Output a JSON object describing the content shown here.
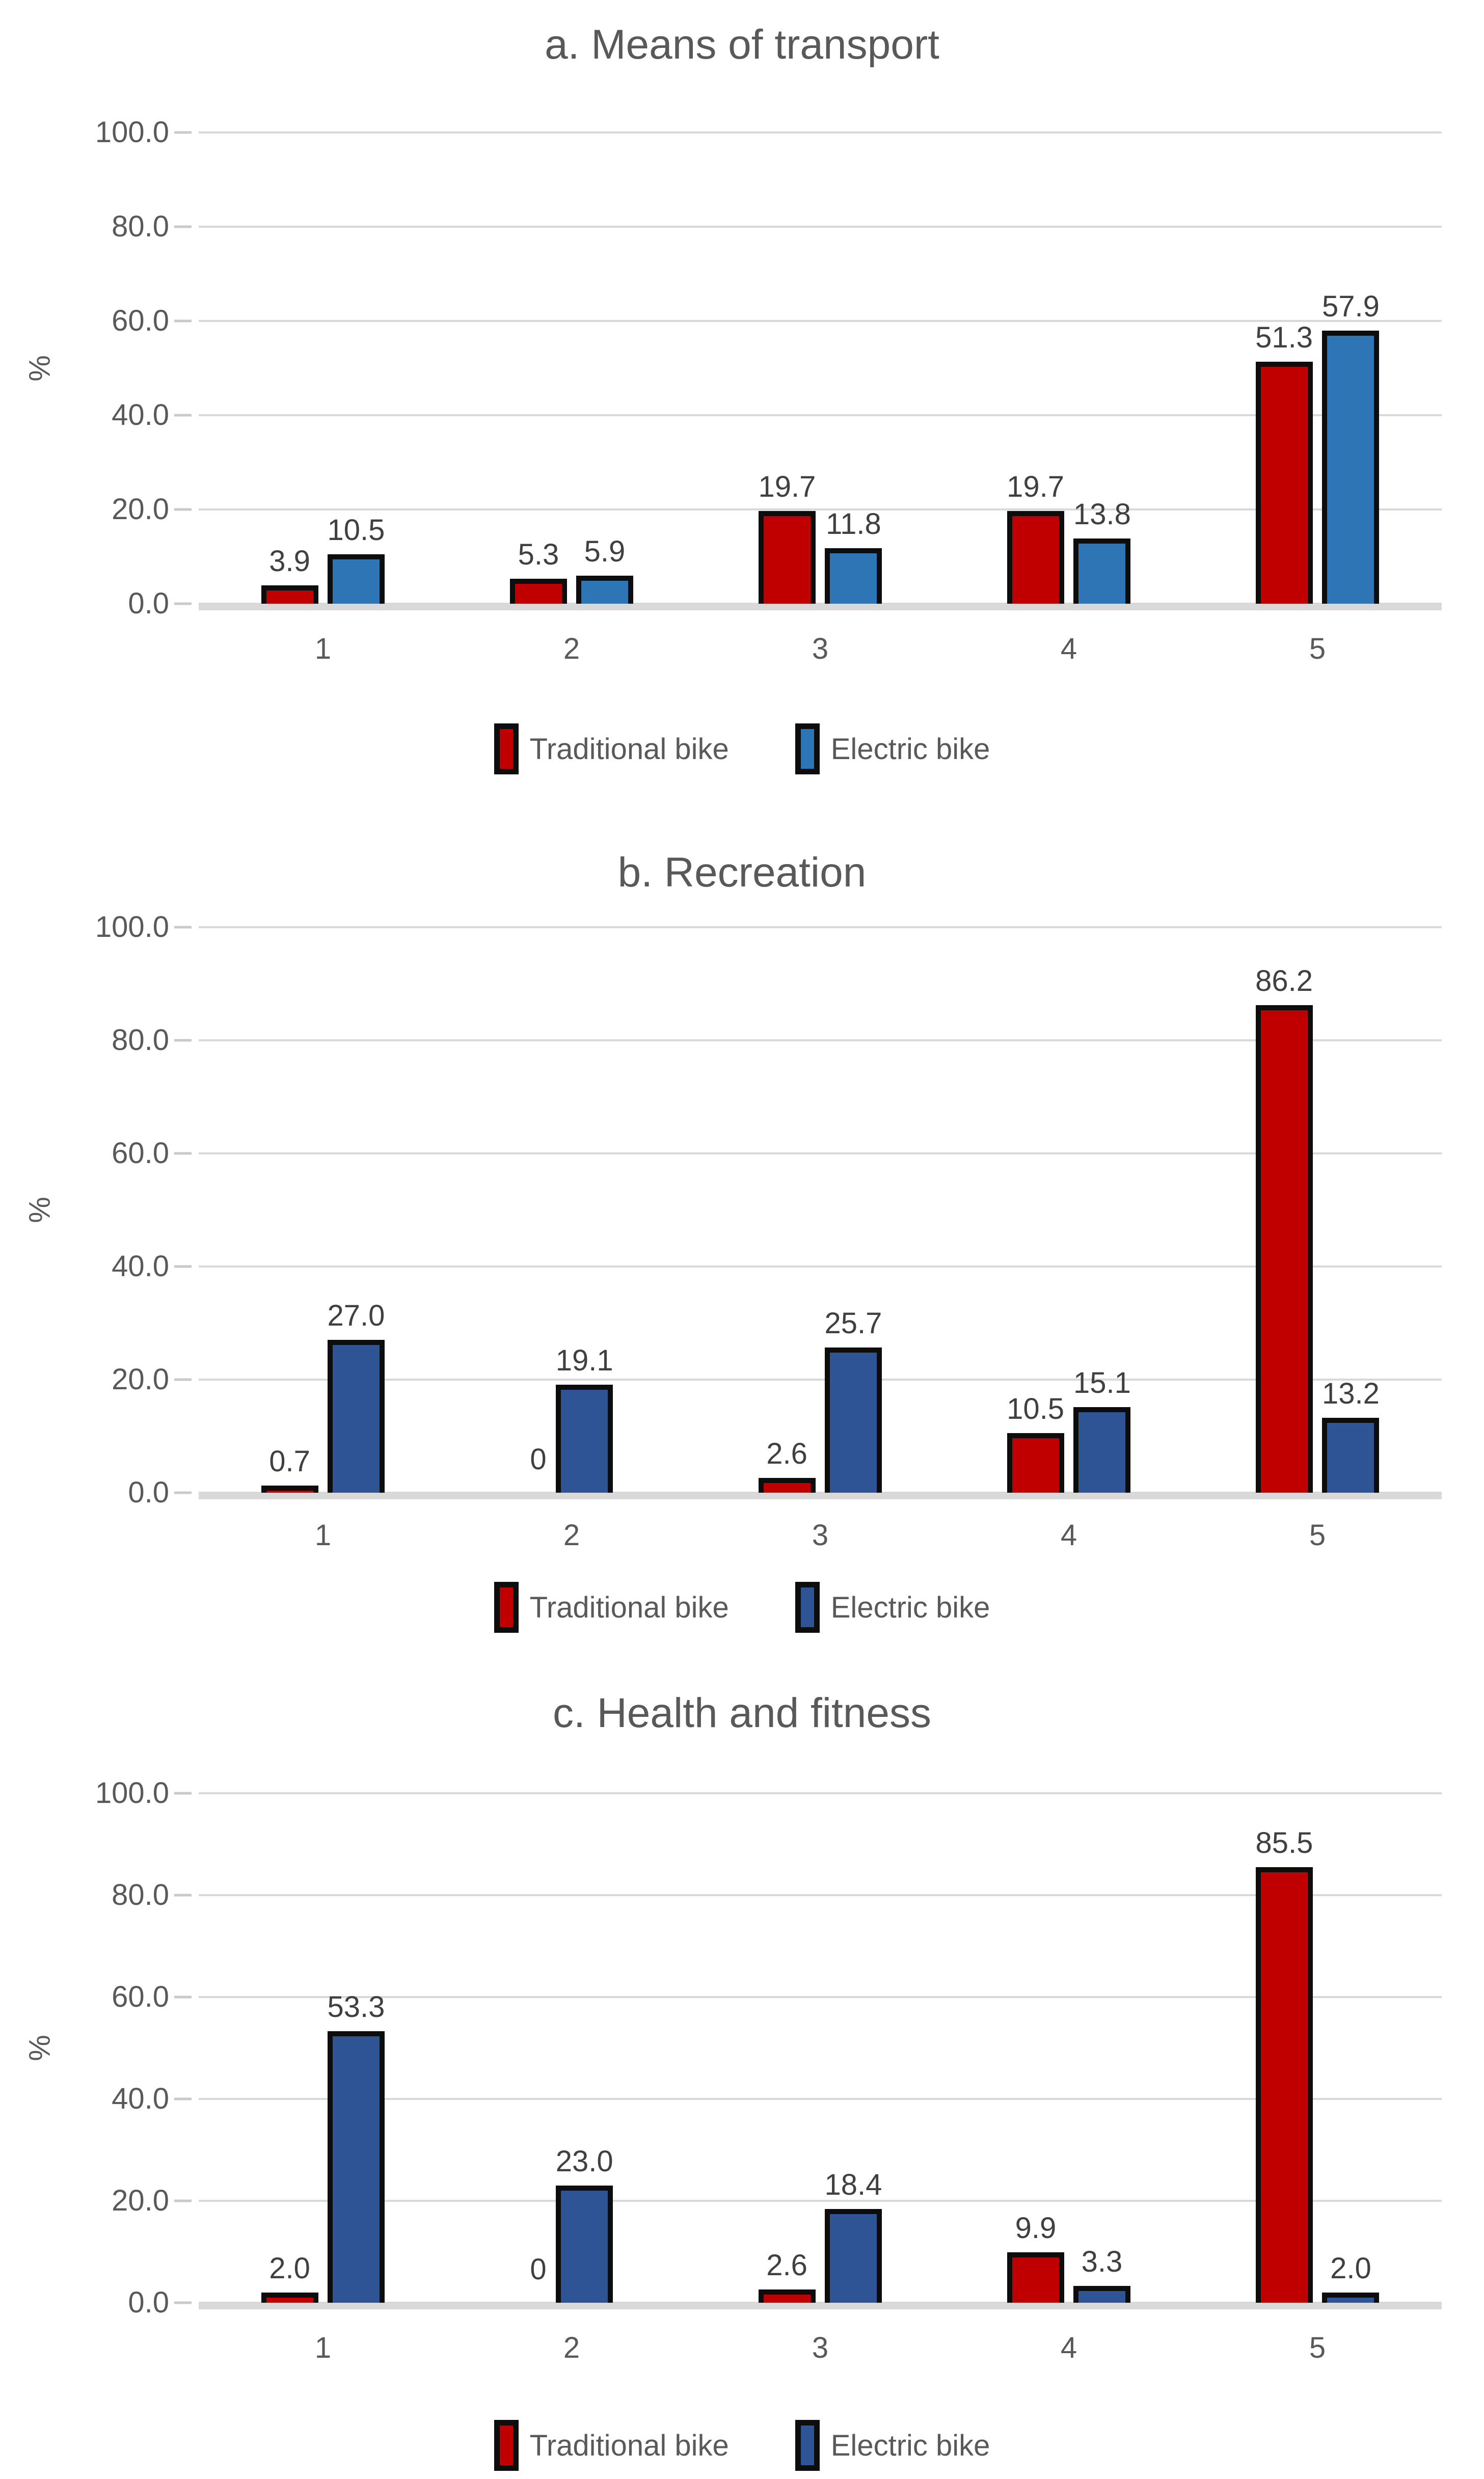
{
  "figure": {
    "background": "#FFFFFF"
  },
  "colors": {
    "traditional_red": "#C00000",
    "electric_blue_chart_a": "#2E75B6",
    "electric_blue_charts_bc": "#2F5496",
    "bar_border": "#0D0D0D",
    "gridline": "#D9D9D9",
    "axis_line": "#D9D9D9",
    "title_text": "#595959",
    "axis_text": "#595959",
    "data_label_text": "#404040"
  },
  "chart_data": [
    {
      "id": "a",
      "type": "bar",
      "title": "a. Means of transport",
      "ylabel": "%",
      "ylim": [
        0,
        100
      ],
      "yticks": [
        "100.0",
        "80.0",
        "60.0",
        "40.0",
        "20.0",
        "0.0"
      ],
      "grid": true,
      "legend_position": "bottom",
      "categories": [
        "1",
        "2",
        "3",
        "4",
        "5"
      ],
      "series": [
        {
          "name": "Traditional bike",
          "color": "#C00000",
          "values": [
            3.9,
            5.3,
            19.7,
            19.7,
            51.3
          ],
          "labels": [
            "3.9",
            "5.3",
            "19.7",
            "19.7",
            "51.3"
          ]
        },
        {
          "name": "Electric bike",
          "color": "#2E75B6",
          "values": [
            10.5,
            5.9,
            11.8,
            13.8,
            57.9
          ],
          "labels": [
            "10.5",
            "5.9",
            "11.8",
            "13.8",
            "57.9"
          ]
        }
      ]
    },
    {
      "id": "b",
      "type": "bar",
      "title": "b. Recreation",
      "ylabel": "%",
      "ylim": [
        0,
        100
      ],
      "yticks": [
        "100.0",
        "80.0",
        "60.0",
        "40.0",
        "20.0",
        "0.0"
      ],
      "grid": true,
      "legend_position": "bottom",
      "categories": [
        "1",
        "2",
        "3",
        "4",
        "5"
      ],
      "series": [
        {
          "name": "Traditional bike",
          "color": "#C00000",
          "values": [
            0.7,
            0,
            2.6,
            10.5,
            86.2
          ],
          "labels": [
            "0.7",
            "0",
            "2.6",
            "10.5",
            "86.2"
          ]
        },
        {
          "name": "Electric bike",
          "color": "#2F5496",
          "values": [
            27.0,
            19.1,
            25.7,
            15.1,
            13.2
          ],
          "labels": [
            "27.0",
            "19.1",
            "25.7",
            "15.1",
            "13.2"
          ]
        }
      ]
    },
    {
      "id": "c",
      "type": "bar",
      "title": "c. Health and fitness",
      "ylabel": "%",
      "ylim": [
        0,
        100
      ],
      "yticks": [
        "100.0",
        "80.0",
        "60.0",
        "40.0",
        "20.0",
        "0.0"
      ],
      "grid": true,
      "legend_position": "bottom",
      "categories": [
        "1",
        "2",
        "3",
        "4",
        "5"
      ],
      "series": [
        {
          "name": "Traditional bike",
          "color": "#C00000",
          "values": [
            2.0,
            0,
            2.6,
            9.9,
            85.5
          ],
          "labels": [
            "2.0",
            "0",
            "2.6",
            "9.9",
            "85.5"
          ]
        },
        {
          "name": "Electric bike",
          "color": "#2F5496",
          "values": [
            53.3,
            23.0,
            18.4,
            3.3,
            2.0
          ],
          "labels": [
            "53.3",
            "23.0",
            "18.4",
            "3.3",
            "2.0"
          ]
        }
      ]
    }
  ]
}
